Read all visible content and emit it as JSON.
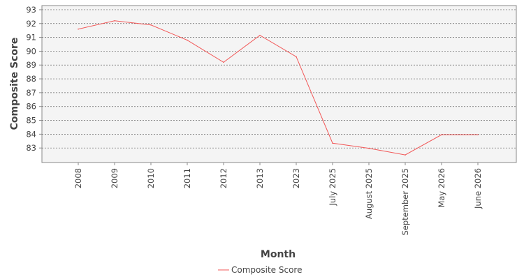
{
  "chart_data": {
    "type": "line",
    "title": "",
    "xlabel": "Month",
    "ylabel": "Composite Score",
    "categories": [
      "2008",
      "2009",
      "2010",
      "2011",
      "2012",
      "2013",
      "2023",
      "July 2025",
      "August 2025",
      "September 2025",
      "May 2026",
      "June 2026"
    ],
    "series": [
      {
        "name": "Composite Score",
        "color": "#f25757",
        "values": [
          91.6,
          92.2,
          91.9,
          90.8,
          89.2,
          91.15,
          89.6,
          83.35,
          82.98,
          82.5,
          83.96,
          83.96
        ]
      }
    ],
    "ylim": [
      81.95,
      93.3
    ],
    "yticks": [
      83,
      84,
      85,
      86,
      87,
      88,
      89,
      90,
      91,
      92,
      93
    ],
    "grid": true,
    "legend_position": "bottom"
  }
}
